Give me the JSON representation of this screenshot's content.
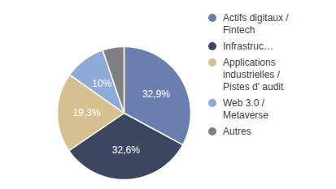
{
  "chart_data": {
    "type": "pie",
    "categories": [
      "Actifs digitaux / Fintech",
      "Infrastruc…",
      "Applications industrielles / Pistes d' audit",
      "Web 3.0 / Metaverse",
      "Autres"
    ],
    "values": [
      32.9,
      32.6,
      19.3,
      10,
      5.2
    ],
    "value_labels": [
      "32,9%",
      "32,6%",
      "19,3%",
      "10%",
      null
    ],
    "colors": [
      "#6a7fae",
      "#3b4661",
      "#d6c090",
      "#8eabd8",
      "#808080"
    ],
    "data_labels": true,
    "legend": "right"
  }
}
